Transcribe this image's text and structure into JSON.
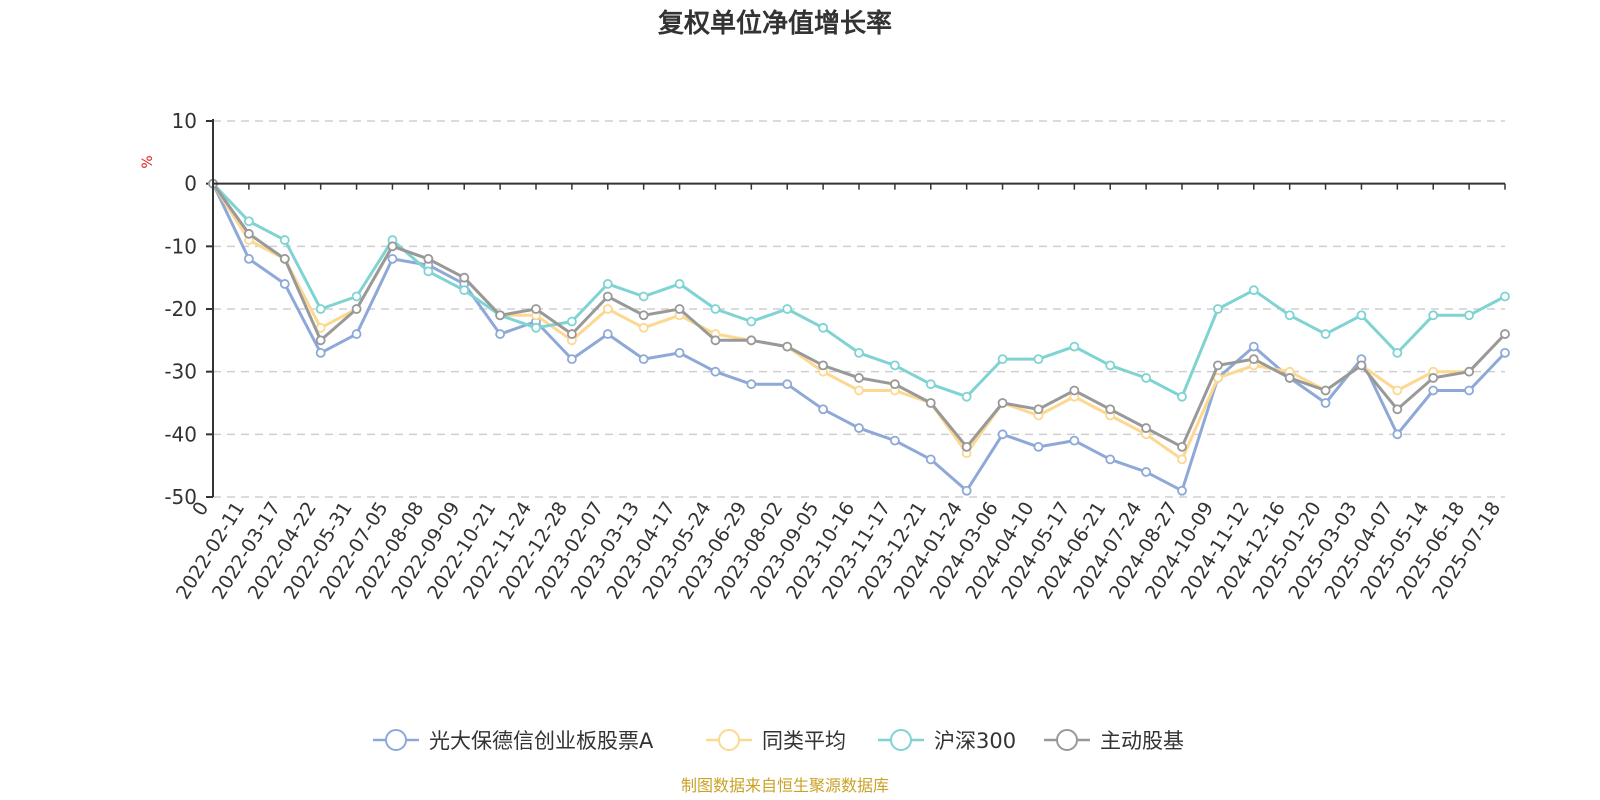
{
  "chart_data": {
    "type": "line",
    "title": "复权单位净值增长率",
    "ylabel": "%",
    "ylim": [
      -50,
      10
    ],
    "yticks": [
      "10",
      "0",
      "-10",
      "-20",
      "-30",
      "-40",
      "-50"
    ],
    "categories": [
      "0",
      "2022-02-11",
      "2022-03-17",
      "2022-04-22",
      "2022-05-31",
      "2022-07-05",
      "2022-08-08",
      "2022-09-09",
      "2022-10-21",
      "2022-11-24",
      "2022-12-28",
      "2023-02-07",
      "2023-03-13",
      "2023-04-17",
      "2023-05-24",
      "2023-06-29",
      "2023-08-02",
      "2023-09-05",
      "2023-10-16",
      "2023-11-17",
      "2023-12-21",
      "2024-01-24",
      "2024-03-06",
      "2024-04-10",
      "2024-05-17",
      "2024-06-21",
      "2024-07-24",
      "2024-08-27",
      "2024-10-09",
      "2024-11-12",
      "2024-12-16",
      "2025-01-20",
      "2025-03-03",
      "2025-04-07",
      "2025-05-14",
      "2025-06-18",
      "2025-07-18"
    ],
    "grid": true,
    "legend_position": "bottom",
    "series": [
      {
        "name": "光大保德信创业板股票A",
        "color": "#8ea9d8",
        "values": [
          0,
          -12,
          -16,
          -27,
          -24,
          -12,
          -13,
          -16,
          -24,
          -22,
          -28,
          -24,
          -28,
          -27,
          -30,
          -32,
          -32,
          -36,
          -39,
          -41,
          -44,
          -49,
          -40,
          -42,
          -41,
          -44,
          -46,
          -49,
          -31,
          -26,
          -31,
          -35,
          -28,
          -40,
          -33,
          -33,
          -27
        ]
      },
      {
        "name": "同类平均",
        "color": "#fcd890",
        "values": [
          0,
          -9,
          -12,
          -23,
          -20,
          -10,
          -12,
          -15,
          -21,
          -21,
          -25,
          -20,
          -23,
          -21,
          -24,
          -25,
          -26,
          -30,
          -33,
          -33,
          -35,
          -43,
          -35,
          -37,
          -34,
          -37,
          -40,
          -44,
          -31,
          -29,
          -30,
          -33,
          -29,
          -33,
          -30,
          -30,
          -24
        ]
      },
      {
        "name": "沪深300",
        "color": "#7fd3d3",
        "values": [
          0,
          -6,
          -9,
          -20,
          -18,
          -9,
          -14,
          -17,
          -21,
          -23,
          -22,
          -16,
          -18,
          -16,
          -20,
          -22,
          -20,
          -23,
          -27,
          -29,
          -32,
          -34,
          -28,
          -28,
          -26,
          -29,
          -31,
          -34,
          -20,
          -17,
          -21,
          -24,
          -21,
          -27,
          -21,
          -21,
          -18
        ]
      },
      {
        "name": "主动股基",
        "color": "#999999",
        "values": [
          0,
          -8,
          -12,
          -25,
          -20,
          -10,
          -12,
          -15,
          -21,
          -20,
          -24,
          -18,
          -21,
          -20,
          -25,
          -25,
          -26,
          -29,
          -31,
          -32,
          -35,
          -42,
          -35,
          -36,
          -33,
          -36,
          -39,
          -42,
          -29,
          -28,
          -31,
          -33,
          -29,
          -36,
          -31,
          -30,
          -24
        ]
      }
    ]
  },
  "source_note": "制图数据来自恒生聚源数据库"
}
